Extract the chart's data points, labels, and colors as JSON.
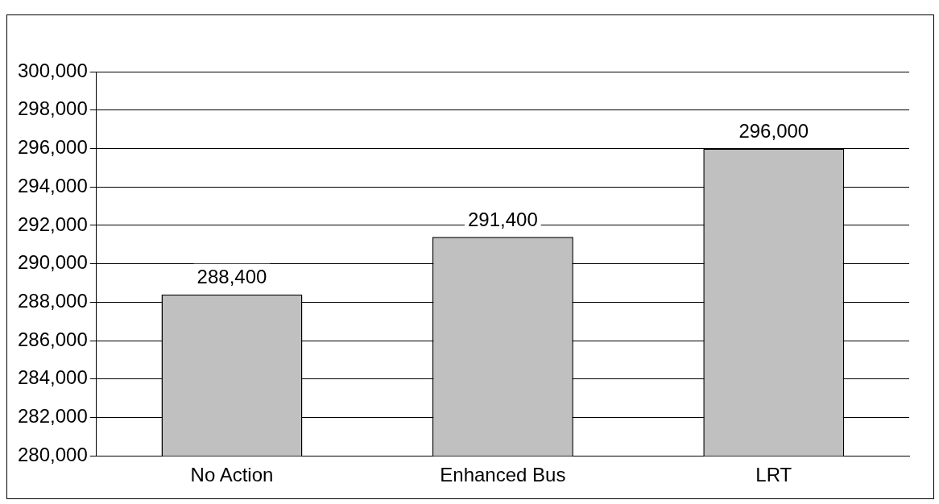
{
  "chart_data": {
    "type": "bar",
    "categories": [
      "No Action",
      "Enhanced Bus",
      "LRT"
    ],
    "values": [
      288400,
      291400,
      296000
    ],
    "color": "#c0c0c0",
    "value_labels": [
      "288,400",
      "291,400",
      "296,000"
    ],
    "ylim": [
      280000,
      300000
    ],
    "yticks": [
      {
        "value": 280000,
        "label": "280,000"
      },
      {
        "value": 282000,
        "label": "282,000"
      },
      {
        "value": 284000,
        "label": "284,000"
      },
      {
        "value": 286000,
        "label": "286,000"
      },
      {
        "value": 288000,
        "label": "288,000"
      },
      {
        "value": 290000,
        "label": "290,000"
      },
      {
        "value": 292000,
        "label": "292,000"
      },
      {
        "value": 294000,
        "label": "294,000"
      },
      {
        "value": 296000,
        "label": "296,000"
      },
      {
        "value": 298000,
        "label": "298,000"
      },
      {
        "value": 300000,
        "label": "300,000"
      }
    ],
    "grid": "y"
  }
}
